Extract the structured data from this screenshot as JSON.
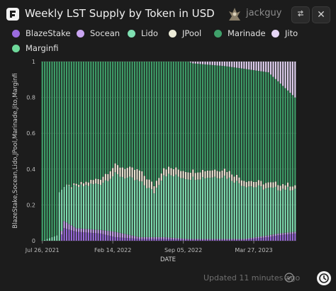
{
  "header": {
    "title": "Weekly LST Supply by Token in USD",
    "username": "jackguy",
    "swap_icon": "swap-arrows-icon",
    "close_icon": "close-icon",
    "close_label": "✕"
  },
  "footer": {
    "updated": "Updated 11 minutes ago"
  },
  "chart_data": {
    "type": "bar",
    "stacked": true,
    "normalized": true,
    "xlabel": "DATE",
    "ylabel": "BlazeStake,Socean,Lido,JPool,Marinade,Jito,Marginfi",
    "ylim": [
      0,
      1
    ],
    "yticks": [
      "0",
      "0.2",
      "0.4",
      "0.6",
      "0.8",
      "1"
    ],
    "xticks": [
      "Jul 26, 2021",
      "Feb 14, 2022",
      "Sep 05, 2022",
      "Mar 27, 2023"
    ],
    "grid": true,
    "legend_position": "top",
    "series": [
      {
        "name": "BlazeStake",
        "color": "#9b6bdf"
      },
      {
        "name": "Socean",
        "color": "#c9a5f2"
      },
      {
        "name": "Lido",
        "color": "#7fe0b2"
      },
      {
        "name": "JPool",
        "color": "#ecebd8"
      },
      {
        "name": "Marinade",
        "color": "#3fa06a"
      },
      {
        "name": "Jito",
        "color": "#e6d6f7"
      },
      {
        "name": "Marginfi",
        "color": "#6ed89a"
      }
    ],
    "weeks": 105,
    "start_date": "Jul 26, 2021",
    "keypoints": [
      {
        "week": 0,
        "blaze": 0.0,
        "socean": 0.0,
        "lido": 0.0,
        "jpool": 0.0,
        "jito": 0.0,
        "marginfi": 0.0
      },
      {
        "week": 6,
        "blaze": 0.0,
        "socean": 0.0,
        "lido": 0.03,
        "jpool": 0.0,
        "jito": 0.0,
        "marginfi": 0.0
      },
      {
        "week": 7,
        "blaze": 0.0,
        "socean": 0.0,
        "lido": 0.28,
        "jpool": 0.0,
        "jito": 0.0,
        "marginfi": 0.0
      },
      {
        "week": 9,
        "blaze": 0.07,
        "socean": 0.04,
        "lido": 0.19,
        "jpool": 0.0,
        "jito": 0.0,
        "marginfi": 0.0
      },
      {
        "week": 14,
        "blaze": 0.05,
        "socean": 0.02,
        "lido": 0.23,
        "jpool": 0.01,
        "jito": 0.0,
        "marginfi": 0.0
      },
      {
        "week": 24,
        "blaze": 0.04,
        "socean": 0.02,
        "lido": 0.26,
        "jpool": 0.03,
        "jito": 0.0,
        "marginfi": 0.0
      },
      {
        "week": 30,
        "blaze": 0.02,
        "socean": 0.03,
        "lido": 0.32,
        "jpool": 0.05,
        "jito": 0.0,
        "marginfi": 0.0
      },
      {
        "week": 40,
        "blaze": 0.01,
        "socean": 0.01,
        "lido": 0.31,
        "jpool": 0.06,
        "jito": 0.0,
        "marginfi": 0.0
      },
      {
        "week": 46,
        "blaze": 0.01,
        "socean": 0.01,
        "lido": 0.25,
        "jpool": 0.04,
        "jito": 0.0,
        "marginfi": 0.0
      },
      {
        "week": 50,
        "blaze": 0.01,
        "socean": 0.01,
        "lido": 0.35,
        "jpool": 0.04,
        "jito": 0.0,
        "marginfi": 0.0
      },
      {
        "week": 60,
        "blaze": 0.005,
        "socean": 0.005,
        "lido": 0.34,
        "jpool": 0.04,
        "jito": 0.0,
        "marginfi": 0.0
      },
      {
        "week": 62,
        "blaze": 0.005,
        "socean": 0.005,
        "lido": 0.34,
        "jpool": 0.04,
        "jito": 0.01,
        "marginfi": 0.0
      },
      {
        "week": 75,
        "blaze": 0.005,
        "socean": 0.005,
        "lido": 0.35,
        "jpool": 0.04,
        "jito": 0.025,
        "marginfi": 0.0
      },
      {
        "week": 83,
        "blaze": 0.005,
        "socean": 0.005,
        "lido": 0.3,
        "jpool": 0.03,
        "jito": 0.04,
        "marginfi": 0.0
      },
      {
        "week": 93,
        "blaze": 0.02,
        "socean": 0.01,
        "lido": 0.26,
        "jpool": 0.03,
        "jito": 0.06,
        "marginfi": 0.0
      },
      {
        "week": 97,
        "blaze": 0.03,
        "socean": 0.01,
        "lido": 0.25,
        "jpool": 0.03,
        "jito": 0.11,
        "marginfi": 0.0
      },
      {
        "week": 104,
        "blaze": 0.04,
        "socean": 0.01,
        "lido": 0.24,
        "jpool": 0.02,
        "jito": 0.2,
        "marginfi": 0.0
      }
    ]
  }
}
